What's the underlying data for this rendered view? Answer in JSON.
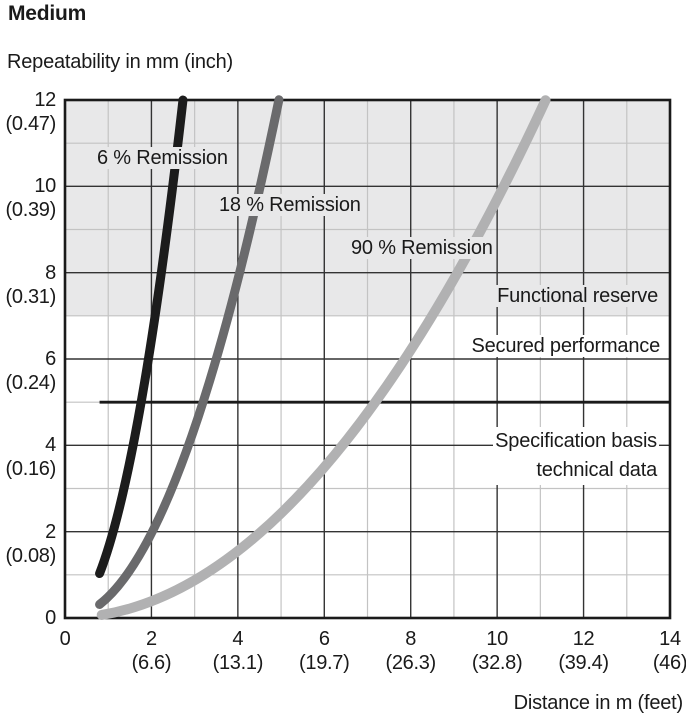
{
  "title": "Medium",
  "y_axis": {
    "unit_label": "Repeatability in mm (inch)",
    "ticks": [
      {
        "v": 12,
        "mm": "12",
        "inch": "(0.47)"
      },
      {
        "v": 10,
        "mm": "10",
        "inch": "(0.39)"
      },
      {
        "v": 8,
        "mm": "8",
        "inch": "(0.31)"
      },
      {
        "v": 6,
        "mm": "6",
        "inch": "(0.24)"
      },
      {
        "v": 4,
        "mm": "4",
        "inch": "(0.16)"
      },
      {
        "v": 2,
        "mm": "2",
        "inch": "(0.08)"
      },
      {
        "v": 0,
        "mm": "0",
        "inch": ""
      }
    ]
  },
  "x_axis": {
    "unit_label": "Distance in m (feet)",
    "ticks": [
      {
        "v": 0,
        "m": "0",
        "feet": ""
      },
      {
        "v": 2,
        "m": "2",
        "feet": "(6.6)"
      },
      {
        "v": 4,
        "m": "4",
        "feet": "(13.1)"
      },
      {
        "v": 6,
        "m": "6",
        "feet": "(19.7)"
      },
      {
        "v": 8,
        "m": "8",
        "feet": "(26.3)"
      },
      {
        "v": 10,
        "m": "10",
        "feet": "(32.8)"
      },
      {
        "v": 12,
        "m": "12",
        "feet": "(39.4)"
      },
      {
        "v": 14,
        "m": "14",
        "feet": "(46)"
      }
    ]
  },
  "labels": {
    "remission6": "6 % Remission",
    "remission18": "18 % Remission",
    "remission90": "90 % Remission",
    "functional_reserve": "Functional reserve",
    "secured_performance": "Secured performance",
    "spec_basis_line1": "Specification basis",
    "spec_basis_line2": "technical data"
  },
  "colors": {
    "shading": "#e8e8e9",
    "grid_light": "#c3c3c3",
    "grid_dark": "#333333",
    "border": "#1a1a1a",
    "spec_line": "#1a1a1a",
    "curve_6": "#1c1c1c",
    "curve_18": "#6a6a6c",
    "curve_90": "#b1b1b2",
    "text": "#1a1a1a"
  },
  "chart_data": {
    "type": "line",
    "title": "Medium",
    "xlabel": "Distance in m (feet)",
    "ylabel": "Repeatability in mm (inch)",
    "xlim": [
      0,
      14
    ],
    "ylim": [
      0,
      12
    ],
    "grid": {
      "x_minor": [
        1,
        3,
        5,
        7,
        9,
        11,
        13
      ],
      "x_major": [
        2,
        4,
        6,
        8,
        10,
        12
      ],
      "y_minor": [
        1,
        3,
        5,
        7,
        9,
        11
      ],
      "y_major": [
        2,
        4,
        6,
        8,
        10
      ]
    },
    "zones": [
      {
        "label": "Functional reserve",
        "y_from": 7,
        "y_to": 12,
        "shaded": true
      },
      {
        "label": "Secured performance",
        "y_from": 0,
        "y_to": 7,
        "shaded": false
      }
    ],
    "spec_line": {
      "y": 5,
      "x_from": 0.8,
      "x_to": 14,
      "label": "Specification basis technical data"
    },
    "series": [
      {
        "name": "6 % Remission",
        "color": "#1c1c1c",
        "stroke_width": 9,
        "k": 1.61,
        "x_start": 0.8,
        "x_end": 2.73,
        "x": [
          0.8,
          1.0,
          1.2,
          1.4,
          1.6,
          1.8,
          2.0,
          2.2,
          2.4,
          2.6,
          2.73
        ],
        "y": [
          1.03,
          1.61,
          2.32,
          3.16,
          4.12,
          5.22,
          6.44,
          7.79,
          9.27,
          10.88,
          12.0
        ]
      },
      {
        "name": "18 % Remission",
        "color": "#6a6a6c",
        "stroke_width": 9,
        "k": 0.49,
        "x_start": 0.8,
        "x_end": 4.95,
        "x": [
          0.8,
          1.2,
          1.6,
          2.0,
          2.4,
          2.8,
          3.2,
          3.6,
          4.0,
          4.4,
          4.8,
          4.95
        ],
        "y": [
          0.31,
          0.71,
          1.25,
          1.96,
          2.82,
          3.84,
          5.02,
          6.35,
          7.84,
          9.49,
          11.29,
          12.0
        ]
      },
      {
        "name": "90 % Remission",
        "color": "#b1b1b2",
        "stroke_width": 10,
        "k": 0.097,
        "x_start": 0.85,
        "x_end": 11.12,
        "x": [
          0.85,
          1.5,
          2.5,
          3.5,
          4.5,
          5.5,
          6.5,
          7.5,
          8.5,
          9.5,
          10.5,
          11.12
        ],
        "y": [
          0.07,
          0.22,
          0.61,
          1.19,
          1.96,
          2.93,
          4.1,
          5.46,
          7.01,
          8.75,
          10.69,
          12.0
        ]
      }
    ]
  }
}
